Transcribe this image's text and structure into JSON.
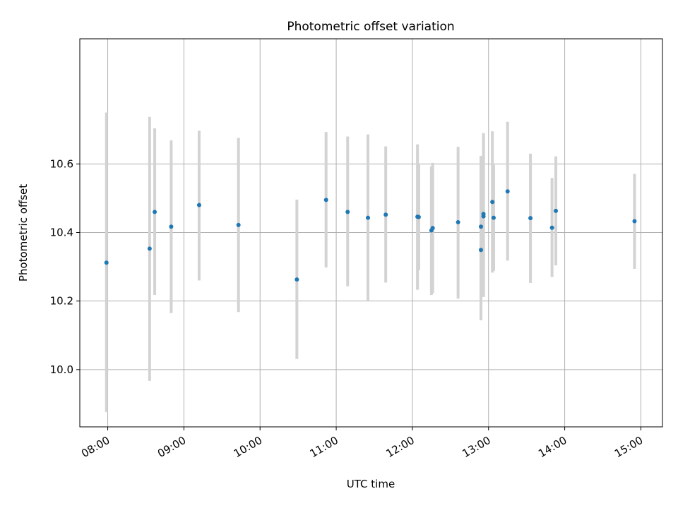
{
  "chart_data": {
    "type": "scatter",
    "title": "Photometric offset variation",
    "xlabel": "UTC time",
    "ylabel": "Photometric offset",
    "x_axis": {
      "scale": "time",
      "range": [
        "07:38",
        "15:17"
      ],
      "ticks": [
        "08:00",
        "09:00",
        "10:00",
        "11:00",
        "12:00",
        "13:00",
        "14:00",
        "15:00"
      ],
      "tick_rotation_deg": 30
    },
    "y_axis": {
      "range": [
        9.833,
        10.965
      ],
      "ticks": [
        10.0,
        10.2,
        10.4,
        10.6
      ],
      "tick_labels": [
        "10.0",
        "10.2",
        "10.4",
        "10.6"
      ]
    },
    "grid": true,
    "marker_color": "#1f77b4",
    "errorbar_color": "#d3d3d3",
    "points": [
      {
        "time": "07:59",
        "y": 10.312,
        "yerr_low": 9.876,
        "yerr_high": 10.75
      },
      {
        "time": "08:33",
        "y": 10.353,
        "yerr_low": 9.967,
        "yerr_high": 10.737
      },
      {
        "time": "08:37",
        "y": 10.46,
        "yerr_low": 10.218,
        "yerr_high": 10.704
      },
      {
        "time": "08:50",
        "y": 10.417,
        "yerr_low": 10.165,
        "yerr_high": 10.669
      },
      {
        "time": "09:12",
        "y": 10.48,
        "yerr_low": 10.26,
        "yerr_high": 10.697
      },
      {
        "time": "09:43",
        "y": 10.422,
        "yerr_low": 10.168,
        "yerr_high": 10.676
      },
      {
        "time": "10:29",
        "y": 10.263,
        "yerr_low": 10.031,
        "yerr_high": 10.496
      },
      {
        "time": "10:52",
        "y": 10.495,
        "yerr_low": 10.298,
        "yerr_high": 10.693
      },
      {
        "time": "11:09",
        "y": 10.46,
        "yerr_low": 10.243,
        "yerr_high": 10.68
      },
      {
        "time": "11:25",
        "y": 10.443,
        "yerr_low": 10.2,
        "yerr_high": 10.686
      },
      {
        "time": "11:39",
        "y": 10.452,
        "yerr_low": 10.254,
        "yerr_high": 10.651
      },
      {
        "time": "12:04",
        "y": 10.446,
        "yerr_low": 10.233,
        "yerr_high": 10.657
      },
      {
        "time": "12:05",
        "y": 10.445,
        "yerr_low": 10.29,
        "yerr_high": 10.6
      },
      {
        "time": "12:15",
        "y": 10.406,
        "yerr_low": 10.218,
        "yerr_high": 10.593
      },
      {
        "time": "12:16",
        "y": 10.413,
        "yerr_low": 10.223,
        "yerr_high": 10.603
      },
      {
        "time": "12:36",
        "y": 10.43,
        "yerr_low": 10.207,
        "yerr_high": 10.65
      },
      {
        "time": "12:54",
        "y": 10.417,
        "yerr_low": 10.21,
        "yerr_high": 10.623
      },
      {
        "time": "12:54",
        "y": 10.349,
        "yerr_low": 10.144,
        "yerr_high": 10.554
      },
      {
        "time": "12:56",
        "y": 10.447,
        "yerr_low": 10.212,
        "yerr_high": 10.682
      },
      {
        "time": "12:56",
        "y": 10.454,
        "yerr_low": 10.215,
        "yerr_high": 10.69
      },
      {
        "time": "13:03",
        "y": 10.489,
        "yerr_low": 10.283,
        "yerr_high": 10.695
      },
      {
        "time": "13:04",
        "y": 10.443,
        "yerr_low": 10.288,
        "yerr_high": 10.598
      },
      {
        "time": "13:15",
        "y": 10.52,
        "yerr_low": 10.318,
        "yerr_high": 10.723
      },
      {
        "time": "13:33",
        "y": 10.442,
        "yerr_low": 10.253,
        "yerr_high": 10.63
      },
      {
        "time": "13:50",
        "y": 10.414,
        "yerr_low": 10.27,
        "yerr_high": 10.559
      },
      {
        "time": "13:53",
        "y": 10.463,
        "yerr_low": 10.304,
        "yerr_high": 10.622
      },
      {
        "time": "14:55",
        "y": 10.433,
        "yerr_low": 10.294,
        "yerr_high": 10.571
      }
    ]
  }
}
